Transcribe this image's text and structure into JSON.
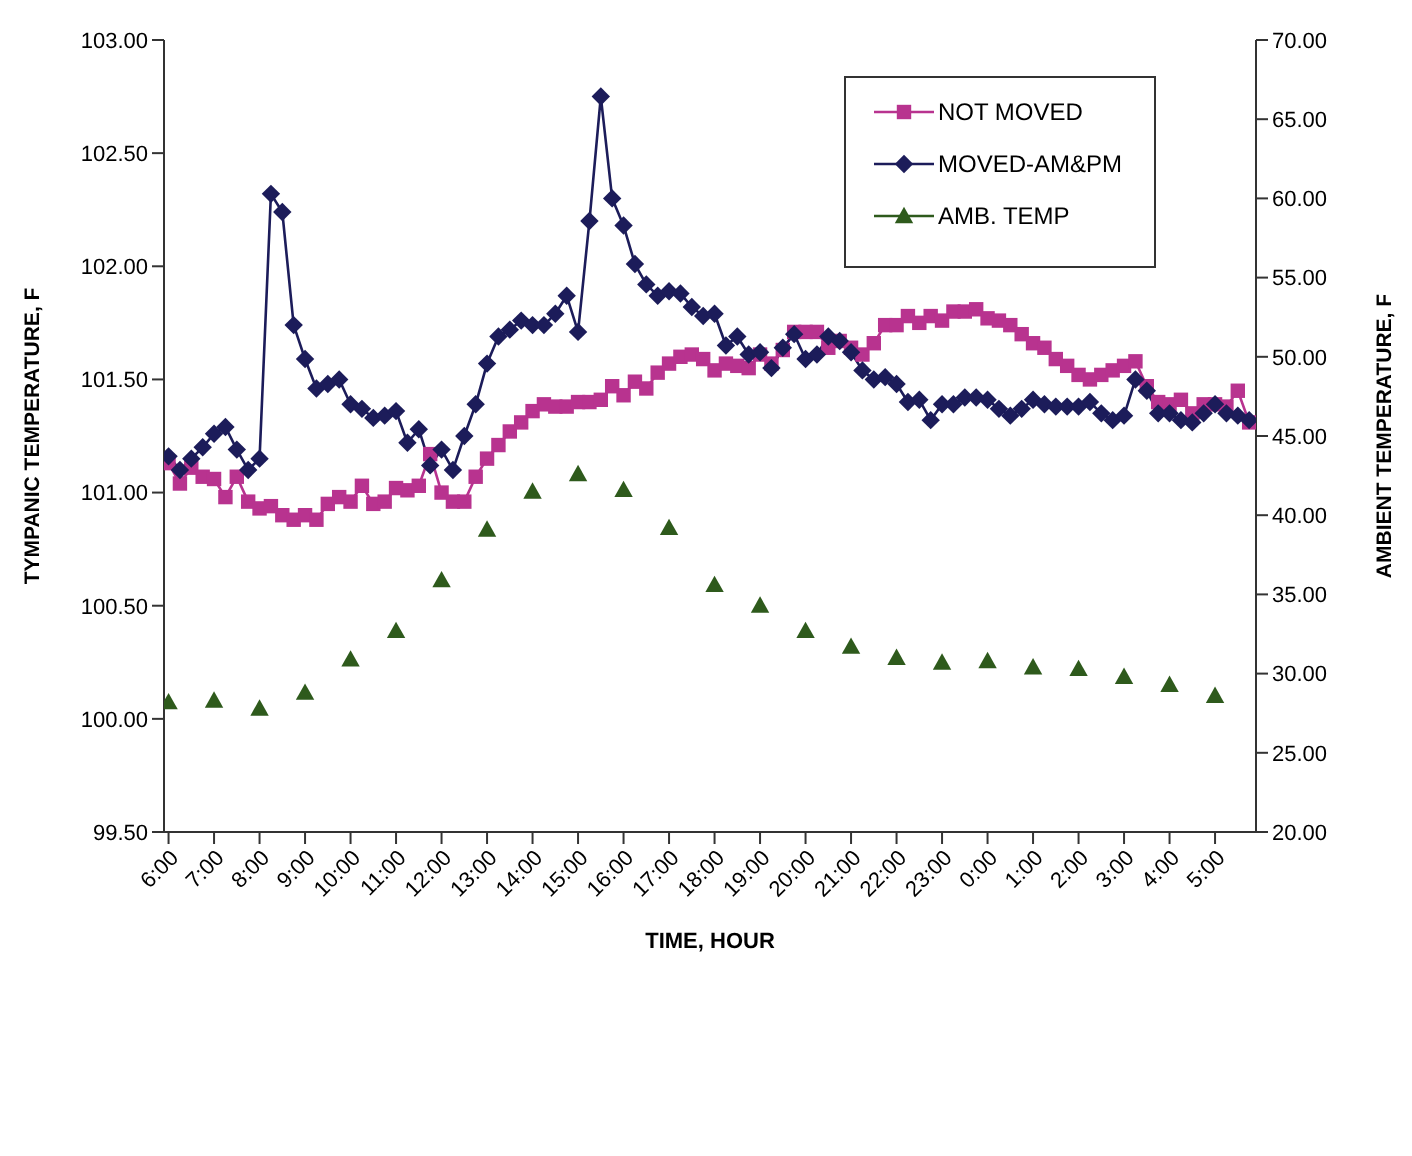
{
  "chart_data": {
    "type": "line",
    "xlabel": "TIME, HOUR",
    "ylabel": "TYMPANIC TEMPERATURE, F",
    "y2label": "AMBIENT TEMPERATURE, F",
    "x": [
      "2000-01-01T06:00",
      "2000-01-01T06:15",
      "2000-01-01T06:30",
      "2000-01-01T06:45",
      "2000-01-01T07:00",
      "2000-01-01T07:15",
      "2000-01-01T07:30",
      "2000-01-01T07:45",
      "2000-01-01T08:00",
      "2000-01-01T08:15",
      "2000-01-01T08:30",
      "2000-01-01T08:45",
      "2000-01-01T09:00",
      "2000-01-01T09:15",
      "2000-01-01T09:30",
      "2000-01-01T09:45",
      "2000-01-01T10:00",
      "2000-01-01T10:15",
      "2000-01-01T10:30",
      "2000-01-01T10:45",
      "2000-01-01T11:00",
      "2000-01-01T11:15",
      "2000-01-01T11:30",
      "2000-01-01T11:45",
      "2000-01-01T12:00",
      "2000-01-01T12:15",
      "2000-01-01T12:30",
      "2000-01-01T12:45",
      "2000-01-01T13:00",
      "2000-01-01T13:15",
      "2000-01-01T13:30",
      "2000-01-01T13:45",
      "2000-01-01T14:00",
      "2000-01-01T14:15",
      "2000-01-01T14:30",
      "2000-01-01T14:45",
      "2000-01-01T15:00",
      "2000-01-01T15:15",
      "2000-01-01T15:30",
      "2000-01-01T15:45",
      "2000-01-01T16:00",
      "2000-01-01T16:15",
      "2000-01-01T16:30",
      "2000-01-01T16:45",
      "2000-01-01T17:00",
      "2000-01-01T17:15",
      "2000-01-01T17:30",
      "2000-01-01T17:45",
      "2000-01-01T18:00",
      "2000-01-01T18:15",
      "2000-01-01T18:30",
      "2000-01-01T18:45",
      "2000-01-01T19:00",
      "2000-01-01T19:15",
      "2000-01-01T19:30",
      "2000-01-01T19:45",
      "2000-01-01T20:00",
      "2000-01-01T20:15",
      "2000-01-01T20:30",
      "2000-01-01T20:45",
      "2000-01-01T21:00",
      "2000-01-01T21:15",
      "2000-01-01T21:30",
      "2000-01-01T21:45",
      "2000-01-01T22:00",
      "2000-01-01T22:15",
      "2000-01-01T22:30",
      "2000-01-01T22:45",
      "2000-01-01T23:00",
      "2000-01-01T23:15",
      "2000-01-01T23:30",
      "2000-01-01T23:45",
      "2000-01-02T00:00",
      "2000-01-02T00:15",
      "2000-01-02T00:30",
      "2000-01-02T00:45",
      "2000-01-02T01:00",
      "2000-01-02T01:15",
      "2000-01-02T01:30",
      "2000-01-02T01:45",
      "2000-01-02T02:00",
      "2000-01-02T02:15",
      "2000-01-02T02:30",
      "2000-01-02T02:45",
      "2000-01-02T03:00",
      "2000-01-02T03:15",
      "2000-01-02T03:30",
      "2000-01-02T03:45",
      "2000-01-02T04:00",
      "2000-01-02T04:15",
      "2000-01-02T04:30",
      "2000-01-02T04:45",
      "2000-01-02T05:00",
      "2000-01-02T05:15",
      "2000-01-02T05:30",
      "2000-01-02T05:45"
    ],
    "series": [
      {
        "name": "NOT MOVED",
        "color": "#b8338f",
        "marker": "square",
        "values": [
          101.13,
          101.04,
          101.11,
          101.07,
          101.06,
          100.98,
          101.07,
          100.96,
          100.93,
          100.94,
          100.9,
          100.88,
          100.9,
          100.88,
          100.95,
          100.98,
          100.96,
          101.03,
          100.95,
          100.96,
          101.02,
          101.01,
          101.03,
          101.17,
          101.0,
          100.96,
          100.96,
          101.07,
          101.15,
          101.21,
          101.27,
          101.31,
          101.36,
          101.39,
          101.38,
          101.38,
          101.4,
          101.4,
          101.41,
          101.47,
          101.43,
          101.49,
          101.46,
          101.53,
          101.57,
          101.6,
          101.61,
          101.59,
          101.54,
          101.57,
          101.56,
          101.55,
          101.61,
          101.57,
          101.63,
          101.71,
          101.71,
          101.71,
          101.64,
          101.67,
          101.64,
          101.61,
          101.66,
          101.74,
          101.74,
          101.78,
          101.75,
          101.78,
          101.76,
          101.8,
          101.8,
          101.81,
          101.77,
          101.76,
          101.74,
          101.7,
          101.66,
          101.64,
          101.59,
          101.56,
          101.52,
          101.5,
          101.52,
          101.54,
          101.56,
          101.58,
          101.47,
          101.4,
          101.39,
          101.41,
          101.35,
          101.39,
          101.39,
          101.38,
          101.45,
          101.31
        ]
      },
      {
        "name": "MOVED-AM&PM",
        "color": "#1c1c5a",
        "marker": "diamond",
        "values": [
          101.16,
          101.1,
          101.15,
          101.2,
          101.26,
          101.29,
          101.19,
          101.1,
          101.15,
          102.32,
          102.24,
          101.74,
          101.59,
          101.46,
          101.48,
          101.5,
          101.39,
          101.37,
          101.33,
          101.34,
          101.36,
          101.22,
          101.28,
          101.12,
          101.19,
          101.1,
          101.25,
          101.39,
          101.57,
          101.69,
          101.72,
          101.76,
          101.74,
          101.74,
          101.79,
          101.87,
          101.71,
          102.2,
          102.75,
          102.3,
          102.18,
          102.01,
          101.92,
          101.87,
          101.89,
          101.88,
          101.82,
          101.78,
          101.79,
          101.65,
          101.69,
          101.61,
          101.62,
          101.55,
          101.64,
          101.7,
          101.59,
          101.61,
          101.69,
          101.67,
          101.62,
          101.54,
          101.5,
          101.51,
          101.48,
          101.4,
          101.41,
          101.32,
          101.39,
          101.39,
          101.42,
          101.42,
          101.41,
          101.37,
          101.34,
          101.37,
          101.41,
          101.39,
          101.38,
          101.38,
          101.38,
          101.4,
          101.35,
          101.32,
          101.34,
          101.5,
          101.45,
          101.35,
          101.35,
          101.32,
          101.31,
          101.35,
          101.39,
          101.35,
          101.34,
          101.32
        ]
      },
      {
        "name": "AMB. TEMP",
        "type": "scatter",
        "axis": "y2",
        "color": "#2e5a1c",
        "marker": "triangle",
        "x": [
          "2000-01-01T06:00",
          "2000-01-01T07:00",
          "2000-01-01T08:00",
          "2000-01-01T09:00",
          "2000-01-01T10:00",
          "2000-01-01T11:00",
          "2000-01-01T12:00",
          "2000-01-01T13:00",
          "2000-01-01T14:00",
          "2000-01-01T15:00",
          "2000-01-01T16:00",
          "2000-01-01T17:00",
          "2000-01-01T18:00",
          "2000-01-01T19:00",
          "2000-01-01T20:00",
          "2000-01-01T21:00",
          "2000-01-01T22:00",
          "2000-01-01T23:00",
          "2000-01-02T00:00",
          "2000-01-02T01:00",
          "2000-01-02T02:00",
          "2000-01-02T03:00",
          "2000-01-02T04:00",
          "2000-01-02T05:00"
        ],
        "values": [
          28.2,
          28.3,
          27.8,
          28.8,
          30.9,
          32.7,
          35.9,
          39.1,
          41.5,
          42.6,
          41.6,
          39.2,
          35.6,
          34.3,
          32.7,
          31.7,
          31.0,
          30.7,
          30.8,
          30.4,
          30.3,
          29.8,
          29.3,
          28.6
        ]
      }
    ],
    "xlim": [
      "2000-01-01T05:54",
      "2000-01-02T05:54"
    ],
    "xticks": [
      {
        "value": "2000-01-01T06:00",
        "label": "6:00"
      },
      {
        "value": "2000-01-01T07:00",
        "label": "7:00"
      },
      {
        "value": "2000-01-01T08:00",
        "label": "8:00"
      },
      {
        "value": "2000-01-01T09:00",
        "label": "9:00"
      },
      {
        "value": "2000-01-01T10:00",
        "label": "10:00"
      },
      {
        "value": "2000-01-01T11:00",
        "label": "11:00"
      },
      {
        "value": "2000-01-01T12:00",
        "label": "12:00"
      },
      {
        "value": "2000-01-01T13:00",
        "label": "13:00"
      },
      {
        "value": "2000-01-01T14:00",
        "label": "14:00"
      },
      {
        "value": "2000-01-01T15:00",
        "label": "15:00"
      },
      {
        "value": "2000-01-01T16:00",
        "label": "16:00"
      },
      {
        "value": "2000-01-01T17:00",
        "label": "17:00"
      },
      {
        "value": "2000-01-01T18:00",
        "label": "18:00"
      },
      {
        "value": "2000-01-01T19:00",
        "label": "19:00"
      },
      {
        "value": "2000-01-01T20:00",
        "label": "20:00"
      },
      {
        "value": "2000-01-01T21:00",
        "label": "21:00"
      },
      {
        "value": "2000-01-01T22:00",
        "label": "22:00"
      },
      {
        "value": "2000-01-01T23:00",
        "label": "23:00"
      },
      {
        "value": "2000-01-02T00:00",
        "label": "0:00"
      },
      {
        "value": "2000-01-02T01:00",
        "label": "1:00"
      },
      {
        "value": "2000-01-02T02:00",
        "label": "2:00"
      },
      {
        "value": "2000-01-02T03:00",
        "label": "3:00"
      },
      {
        "value": "2000-01-02T04:00",
        "label": "4:00"
      },
      {
        "value": "2000-01-02T05:00",
        "label": "5:00"
      }
    ],
    "ylim": [
      99.5,
      103
    ],
    "yticks": [
      {
        "value": 99.5,
        "label": "99.50"
      },
      {
        "value": 100,
        "label": "100.00"
      },
      {
        "value": 100.5,
        "label": "100.50"
      },
      {
        "value": 101,
        "label": "101.00"
      },
      {
        "value": 101.5,
        "label": "101.50"
      },
      {
        "value": 102,
        "label": "102.00"
      },
      {
        "value": 102.5,
        "label": "102.50"
      },
      {
        "value": 103,
        "label": "103.00"
      }
    ],
    "y2lim": [
      20,
      70
    ],
    "y2ticks": [
      {
        "value": 20,
        "label": "20.00"
      },
      {
        "value": 25,
        "label": "25.00"
      },
      {
        "value": 30,
        "label": "30.00"
      },
      {
        "value": 35,
        "label": "35.00"
      },
      {
        "value": 40,
        "label": "40.00"
      },
      {
        "value": 45,
        "label": "45.00"
      },
      {
        "value": 50,
        "label": "50.00"
      },
      {
        "value": 55,
        "label": "55.00"
      },
      {
        "value": 60,
        "label": "60.00"
      },
      {
        "value": 65,
        "label": "65.00"
      },
      {
        "value": 70,
        "label": "70.00"
      }
    ],
    "grid": false,
    "legend": "top right",
    "line_style": "solid"
  }
}
